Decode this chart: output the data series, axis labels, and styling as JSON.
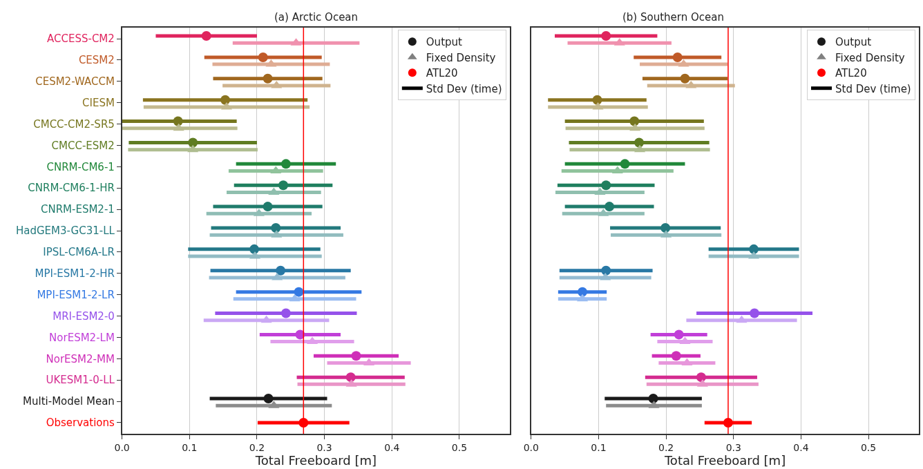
{
  "chart_data": [
    {
      "type": "scatter",
      "orientation": "horizontal",
      "title": "(a) Arctic Ocean",
      "xlabel": "Total Freeboard [m]",
      "categories": [
        "ACCESS-CM2",
        "CESM2",
        "CESM2-WACCM",
        "CIESM",
        "CMCC-CM2-SR5",
        "CMCC-ESM2",
        "CNRM-CM6-1",
        "CNRM-CM6-1-HR",
        "CNRM-ESM2-1",
        "HadGEM3-GC31-LL",
        "IPSL-CM6A-LR",
        "MPI-ESM1-2-HR",
        "MPI-ESM1-2-LR",
        "MRI-ESM2-0",
        "NorESM2-LM",
        "NorESM2-MM",
        "UKESM1-0-LL",
        "Multi-Model Mean",
        "Observations"
      ],
      "xlim": [
        0,
        0.575
      ],
      "xticks": [
        {
          "value": 0,
          "label": "0.0"
        },
        0.1,
        0.2,
        0.3,
        0.4,
        0.5
      ],
      "grid": "x",
      "legend": "top right",
      "ref_lines": [
        {
          "axis": "x",
          "value": 0.269,
          "color": "#ff0000"
        }
      ],
      "series": [
        {
          "name": "Output",
          "marker": "circle",
          "color": "#1a1a1a",
          "colors": [
            "#e0245e",
            "#c05a28",
            "#a0671e",
            "#8a7420",
            "#76761f",
            "#5f7c22",
            "#21883a",
            "#1f7f5e",
            "#1f7b6c",
            "#23797d",
            "#24788a",
            "#2878a5",
            "#3479e3",
            "#9552ea",
            "#c13ed8",
            "#cf2fb8",
            "#d42b8f",
            "#1a1a1a",
            null
          ],
          "values": [
            0.125,
            0.209,
            0.216,
            0.153,
            0.083,
            0.105,
            0.243,
            0.239,
            0.216,
            0.228,
            0.196,
            0.235,
            0.262,
            0.243,
            0.264,
            0.347,
            0.339,
            0.217,
            null
          ],
          "errors": [
            0.075,
            0.087,
            0.081,
            0.122,
            0.087,
            0.095,
            0.074,
            0.073,
            0.081,
            0.096,
            0.098,
            0.104,
            0.093,
            0.105,
            0.06,
            0.063,
            0.08,
            0.087,
            null
          ]
        },
        {
          "name": "Fixed Density",
          "marker": "triangle",
          "color": "#808080",
          "colors": [
            "#f091ae",
            "#dfac93",
            "#cfb38e",
            "#c4b98f",
            "#babb8f",
            "#afbd90",
            "#90c39c",
            "#8fbfae",
            "#8fbdb5",
            "#91bcbe",
            "#91bbc4",
            "#93bbd2",
            "#99bcf1",
            "#caa8f4",
            "#e09eeb",
            "#e797db",
            "#e995c7",
            "#8c8c8c",
            null
          ],
          "values": [
            0.258,
            0.221,
            0.229,
            0.155,
            0.084,
            0.105,
            0.228,
            0.225,
            0.203,
            0.229,
            0.197,
            0.23,
            0.256,
            0.214,
            0.282,
            0.366,
            0.34,
            0.225,
            null
          ],
          "errors": [
            0.094,
            0.087,
            0.08,
            0.123,
            0.087,
            0.096,
            0.07,
            0.07,
            0.078,
            0.099,
            0.099,
            0.101,
            0.091,
            0.093,
            0.062,
            0.062,
            0.08,
            0.086,
            null
          ]
        },
        {
          "name": "ATL20",
          "marker": "circle",
          "color": "#ff0000",
          "colors": [
            null,
            null,
            null,
            null,
            null,
            null,
            null,
            null,
            null,
            null,
            null,
            null,
            null,
            null,
            null,
            null,
            null,
            null,
            "#ff0000"
          ],
          "values": [
            null,
            null,
            null,
            null,
            null,
            null,
            null,
            null,
            null,
            null,
            null,
            null,
            null,
            null,
            null,
            null,
            null,
            null,
            0.269
          ],
          "errors": [
            null,
            null,
            null,
            null,
            null,
            null,
            null,
            null,
            null,
            null,
            null,
            null,
            null,
            null,
            null,
            null,
            null,
            null,
            0.068
          ]
        },
        {
          "name": "Std Dev (time)",
          "type": "line",
          "color": "#000000",
          "values": [
            null,
            null,
            null,
            null,
            null,
            null,
            null,
            null,
            null,
            null,
            null,
            null,
            null,
            null,
            null,
            null,
            null,
            null,
            null
          ]
        }
      ]
    },
    {
      "type": "scatter",
      "orientation": "horizontal",
      "title": "(b) Southern Ocean",
      "xlabel": "Total Freeboard [m]",
      "tick_labels": "x",
      "categories": [
        null,
        null,
        null,
        null,
        null,
        null,
        null,
        null,
        null,
        null,
        null,
        null,
        null,
        null,
        null,
        null,
        null,
        null,
        null
      ],
      "xlim": [
        0,
        0.575
      ],
      "xticks": [
        {
          "value": 0,
          "label": "0.0"
        },
        0.1,
        0.2,
        0.3,
        0.4,
        0.5
      ],
      "grid": "x",
      "legend": "top right",
      "ref_lines": [
        {
          "axis": "x",
          "value": 0.292,
          "color": "#ff0000"
        }
      ],
      "series": [
        {
          "name": "Output",
          "marker": "circle",
          "color": "#1a1a1a",
          "colors": [
            "#e0245e",
            "#c05a28",
            "#a0671e",
            "#8a7420",
            "#76761f",
            "#5f7c22",
            "#21883a",
            "#1f7f5e",
            "#1f7b6c",
            "#23797d",
            "#24788a",
            "#2878a5",
            "#3479e3",
            "#9552ea",
            "#c13ed8",
            "#cf2fb8",
            "#d42b8f",
            "#1a1a1a",
            null
          ],
          "values": [
            0.111,
            0.217,
            0.228,
            0.098,
            0.153,
            0.16,
            0.139,
            0.111,
            0.116,
            0.199,
            0.33,
            0.111,
            0.076,
            0.331,
            0.219,
            0.215,
            0.252,
            0.181,
            null
          ],
          "errors": [
            0.076,
            0.065,
            0.063,
            0.073,
            0.103,
            0.104,
            0.089,
            0.072,
            0.066,
            0.082,
            0.067,
            0.069,
            0.036,
            0.086,
            0.042,
            0.036,
            0.083,
            0.072,
            null
          ]
        },
        {
          "name": "Fixed Density",
          "marker": "triangle",
          "color": "#808080",
          "colors": [
            "#f091ae",
            "#dfac93",
            "#cfb38e",
            "#c4b98f",
            "#babb8f",
            "#afbd90",
            "#90c39c",
            "#8fbfae",
            "#8fbdb5",
            "#91bcbe",
            "#91bbc4",
            "#93bbd2",
            "#99bcf1",
            "#caa8f4",
            "#e09eeb",
            "#e797db",
            "#e995c7",
            "#8c8c8c",
            null
          ],
          "values": [
            0.131,
            0.226,
            0.237,
            0.099,
            0.154,
            0.161,
            0.128,
            0.102,
            0.107,
            0.2,
            0.33,
            0.11,
            0.076,
            0.312,
            0.228,
            0.231,
            0.254,
            0.182,
            null
          ],
          "errors": [
            0.077,
            0.065,
            0.065,
            0.074,
            0.103,
            0.104,
            0.083,
            0.066,
            0.061,
            0.082,
            0.067,
            0.068,
            0.036,
            0.082,
            0.041,
            0.042,
            0.083,
            0.071,
            null
          ]
        },
        {
          "name": "ATL20",
          "marker": "circle",
          "color": "#ff0000",
          "colors": [
            null,
            null,
            null,
            null,
            null,
            null,
            null,
            null,
            null,
            null,
            null,
            null,
            null,
            null,
            null,
            null,
            null,
            null,
            "#ff0000"
          ],
          "values": [
            null,
            null,
            null,
            null,
            null,
            null,
            null,
            null,
            null,
            null,
            null,
            null,
            null,
            null,
            null,
            null,
            null,
            null,
            0.292
          ],
          "errors": [
            null,
            null,
            null,
            null,
            null,
            null,
            null,
            null,
            null,
            null,
            null,
            null,
            null,
            null,
            null,
            null,
            null,
            null,
            0.035
          ]
        },
        {
          "name": "Std Dev (time)",
          "type": "line",
          "color": "#000000",
          "values": [
            null,
            null,
            null,
            null,
            null,
            null,
            null,
            null,
            null,
            null,
            null,
            null,
            null,
            null,
            null,
            null,
            null,
            null,
            null
          ]
        }
      ]
    }
  ]
}
